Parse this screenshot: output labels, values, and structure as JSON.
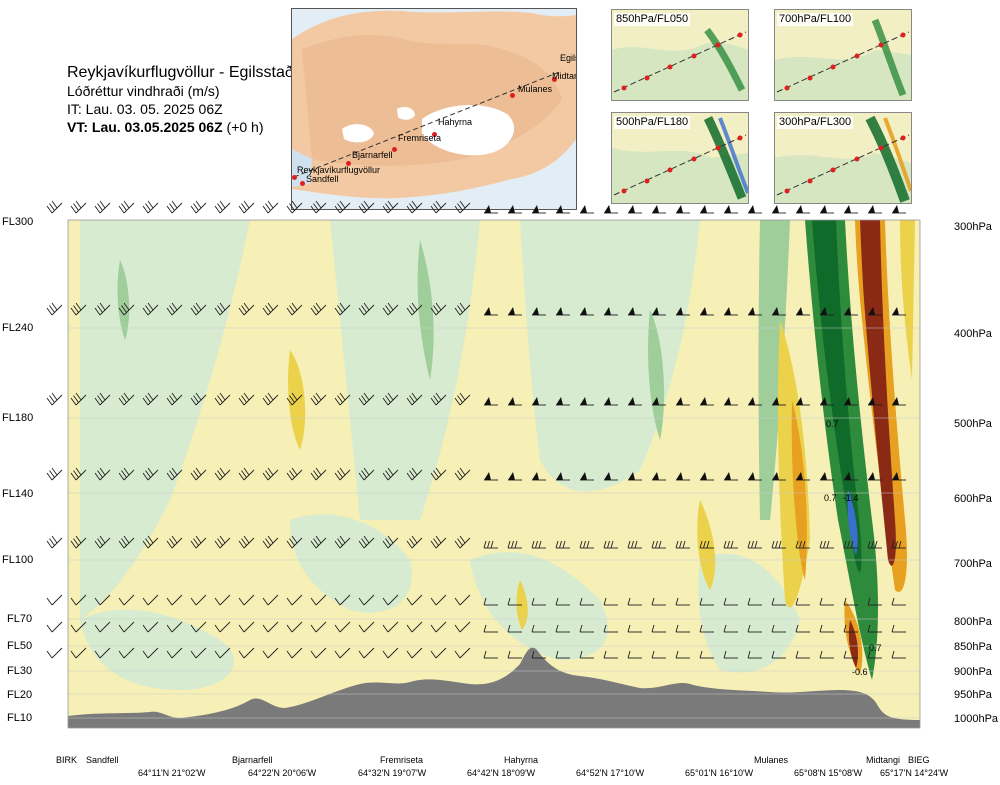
{
  "header": {
    "title": "Reykjavíkurflugvöllur - Egilsstaðir",
    "subtitle": "Lóðréttur vindhraði (m/s)",
    "issue_time": "IT: Lau. 03. 05. 2025 06Z",
    "valid_time": "VT: Lau. 03.05.2025 06Z",
    "valid_offset": "(+0 h)"
  },
  "map": {
    "points": [
      "Reykjavíkurflugvöllur",
      "Sandfell",
      "Bjarnarfell",
      "Fremriseta",
      "Hahyrna",
      "Mulanes",
      "Egilss",
      "Midtang"
    ]
  },
  "thumbnails": [
    {
      "label": "850hPa/FL050"
    },
    {
      "label": "700hPa/FL100"
    },
    {
      "label": "500hPa/FL180"
    },
    {
      "label": "300hPa/FL300"
    }
  ],
  "flight_levels": [
    "FL300",
    "FL240",
    "FL180",
    "FL140",
    "FL100",
    "FL70",
    "FL50",
    "FL30",
    "FL20",
    "FL10"
  ],
  "pressure_levels": [
    "300hPa",
    "400hPa",
    "500hPa",
    "600hPa",
    "700hPa",
    "800hPa",
    "850hPa",
    "900hPa",
    "950hPa",
    "1000hPa"
  ],
  "stations": [
    "BIRK",
    "Sandfell",
    "Bjarnarfell",
    "Fremriseta",
    "Hahyrna",
    "Mulanes",
    "Midtangi",
    "BIEG"
  ],
  "coordinates": [
    "64°11'N 21°02'W",
    "64°22'N 20°06'W",
    "64°32'N 19°07'W",
    "64°42'N 18°09'W",
    "64°52'N 17°10'W",
    "65°01'N 16°10'W",
    "65°08'N 15°08'W",
    "65°17'N 14°24'W"
  ],
  "contour_labels": [
    "0.7",
    "0.7",
    "-1.4",
    "0.7",
    "-0.6"
  ],
  "colors": {
    "updraft_light": "#d6ebd0",
    "updraft_mid": "#9fce9a",
    "updraft_strong": "#2e8b3c",
    "updraft_max": "#106a2a",
    "downdraft_light": "#f6efb6",
    "downdraft_mid": "#ecd24a",
    "downdraft_strong": "#e8a020",
    "downdraft_max": "#8a2a14",
    "terrain": "#7a7a7a",
    "route_dot": "#e02020"
  }
}
